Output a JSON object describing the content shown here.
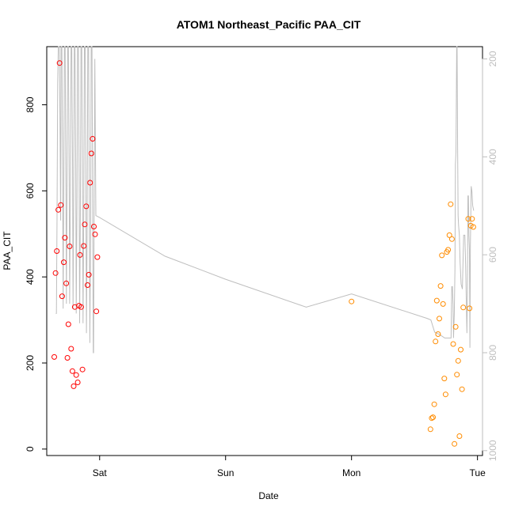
{
  "chart_data": {
    "type": "scatter",
    "title": "ATOM1 Northeast_Pacific PAA_CIT",
    "xlabel": "Date",
    "ylabel": "PAA_CIT",
    "x_ticks": [
      "Sat",
      "Sun",
      "Mon",
      "Tue"
    ],
    "x_tick_values": [
      1,
      2,
      3,
      4
    ],
    "xlim": [
      0.58,
      4.04
    ],
    "ylim": [
      -15,
      935
    ],
    "y_ticks": [
      0,
      200,
      400,
      600,
      800
    ],
    "y2_ticks": [
      200,
      400,
      600,
      800,
      1000
    ],
    "y2lim": [
      1010,
      175
    ],
    "y2_reversed": true,
    "colors": {
      "series1": "#ff0000",
      "series2": "#ff8c00",
      "depth_line": "#bebebe"
    },
    "series": [
      {
        "color": "#ff0000",
        "points": [
          [
            0.64,
            214
          ],
          [
            0.65,
            409
          ],
          [
            0.66,
            460
          ],
          [
            0.672,
            556
          ],
          [
            0.682,
            897
          ],
          [
            0.692,
            567
          ],
          [
            0.702,
            355
          ],
          [
            0.715,
            434
          ],
          [
            0.724,
            491
          ],
          [
            0.735,
            385
          ],
          [
            0.744,
            212
          ],
          [
            0.752,
            290
          ],
          [
            0.762,
            471
          ],
          [
            0.774,
            233
          ],
          [
            0.784,
            181
          ],
          [
            0.794,
            146
          ],
          [
            0.803,
            330
          ],
          [
            0.814,
            172
          ],
          [
            0.826,
            155
          ],
          [
            0.836,
            333
          ],
          [
            0.844,
            451
          ],
          [
            0.853,
            330
          ],
          [
            0.864,
            185
          ],
          [
            0.874,
            472
          ],
          [
            0.882,
            522
          ],
          [
            0.893,
            564
          ],
          [
            0.904,
            381
          ],
          [
            0.914,
            405
          ],
          [
            0.924,
            619
          ],
          [
            0.934,
            687
          ],
          [
            0.944,
            721
          ],
          [
            0.954,
            517
          ],
          [
            0.964,
            499
          ],
          [
            0.974,
            320
          ],
          [
            0.982,
            446
          ]
        ]
      },
      {
        "color": "#ff8c00",
        "points": [
          [
            3.0,
            343
          ],
          [
            3.627,
            46
          ],
          [
            3.637,
            72
          ],
          [
            3.647,
            74
          ],
          [
            3.657,
            104
          ],
          [
            3.667,
            250
          ],
          [
            3.677,
            345
          ],
          [
            3.687,
            267
          ],
          [
            3.697,
            303
          ],
          [
            3.707,
            379
          ],
          [
            3.717,
            450
          ],
          [
            3.727,
            337
          ],
          [
            3.737,
            164
          ],
          [
            3.747,
            127
          ],
          [
            3.757,
            458
          ],
          [
            3.767,
            463
          ],
          [
            3.777,
            497
          ],
          [
            3.787,
            569
          ],
          [
            3.797,
            488
          ],
          [
            3.807,
            244
          ],
          [
            3.817,
            12
          ],
          [
            3.827,
            284
          ],
          [
            3.837,
            173
          ],
          [
            3.847,
            205
          ],
          [
            3.857,
            30
          ],
          [
            3.867,
            231
          ],
          [
            3.877,
            139
          ],
          [
            3.887,
            329
          ],
          [
            3.927,
            535
          ],
          [
            3.937,
            327
          ],
          [
            3.947,
            519
          ],
          [
            3.957,
            535
          ],
          [
            3.967,
            516
          ]
        ]
      }
    ],
    "depth_line": {
      "color": "#bebebe",
      "axis": "right",
      "points": [
        [
          0.652,
          720
        ],
        [
          0.657,
          720
        ],
        [
          0.662,
          520
        ],
        [
          0.667,
          250
        ],
        [
          0.672,
          175
        ],
        [
          0.68,
          175
        ],
        [
          0.686,
          340
        ],
        [
          0.69,
          530
        ],
        [
          0.694,
          175
        ],
        [
          0.7,
          175
        ],
        [
          0.706,
          430
        ],
        [
          0.71,
          710
        ],
        [
          0.714,
          520
        ],
        [
          0.72,
          175
        ],
        [
          0.726,
          175
        ],
        [
          0.732,
          470
        ],
        [
          0.736,
          700
        ],
        [
          0.741,
          460
        ],
        [
          0.746,
          175
        ],
        [
          0.752,
          175
        ],
        [
          0.758,
          440
        ],
        [
          0.762,
          700
        ],
        [
          0.768,
          460
        ],
        [
          0.773,
          175
        ],
        [
          0.779,
          175
        ],
        [
          0.785,
          430
        ],
        [
          0.789,
          710
        ],
        [
          0.794,
          480
        ],
        [
          0.799,
          175
        ],
        [
          0.804,
          175
        ],
        [
          0.81,
          420
        ],
        [
          0.814,
          720
        ],
        [
          0.82,
          480
        ],
        [
          0.825,
          175
        ],
        [
          0.831,
          175
        ],
        [
          0.837,
          450
        ],
        [
          0.841,
          740
        ],
        [
          0.847,
          520
        ],
        [
          0.852,
          175
        ],
        [
          0.858,
          175
        ],
        [
          0.864,
          460
        ],
        [
          0.868,
          740
        ],
        [
          0.874,
          520
        ],
        [
          0.879,
          175
        ],
        [
          0.885,
          175
        ],
        [
          0.891,
          470
        ],
        [
          0.895,
          760
        ],
        [
          0.901,
          540
        ],
        [
          0.906,
          175
        ],
        [
          0.912,
          175
        ],
        [
          0.918,
          480
        ],
        [
          0.922,
          780
        ],
        [
          0.928,
          560
        ],
        [
          0.933,
          175
        ],
        [
          0.939,
          175
        ],
        [
          0.944,
          500
        ],
        [
          0.949,
          800
        ],
        [
          0.952,
          800
        ],
        [
          0.957,
          470
        ],
        [
          0.962,
          200
        ],
        [
          0.97,
          520
        ],
        [
          1.0,
          524
        ],
        [
          1.52,
          603
        ],
        [
          2.0,
          650
        ],
        [
          2.64,
          707
        ],
        [
          3.0,
          680
        ],
        [
          3.6,
          730
        ],
        [
          3.63,
          733
        ],
        [
          3.66,
          758
        ],
        [
          3.7,
          763
        ],
        [
          3.74,
          770
        ],
        [
          3.77,
          770
        ],
        [
          3.79,
          770
        ],
        [
          3.796,
          665
        ],
        [
          3.801,
          665
        ],
        [
          3.806,
          700
        ],
        [
          3.81,
          770
        ],
        [
          3.816,
          720
        ],
        [
          3.821,
          630
        ],
        [
          3.825,
          415
        ],
        [
          3.829,
          390
        ],
        [
          3.832,
          300
        ],
        [
          3.835,
          175
        ],
        [
          3.838,
          175
        ],
        [
          3.842,
          360
        ],
        [
          3.846,
          520
        ],
        [
          3.85,
          540
        ],
        [
          3.856,
          560
        ],
        [
          3.862,
          615
        ],
        [
          3.87,
          660
        ],
        [
          3.88,
          670
        ],
        [
          3.89,
          560
        ],
        [
          3.9,
          560
        ],
        [
          3.906,
          620
        ],
        [
          3.912,
          710
        ],
        [
          3.916,
          760
        ],
        [
          3.92,
          680
        ],
        [
          3.924,
          480
        ],
        [
          3.928,
          480
        ],
        [
          3.932,
          560
        ],
        [
          3.936,
          590
        ],
        [
          3.94,
          790
        ],
        [
          3.944,
          580
        ],
        [
          3.95,
          460
        ],
        [
          3.956,
          470
        ],
        [
          3.962,
          500
        ],
        [
          3.97,
          510
        ]
      ]
    }
  }
}
